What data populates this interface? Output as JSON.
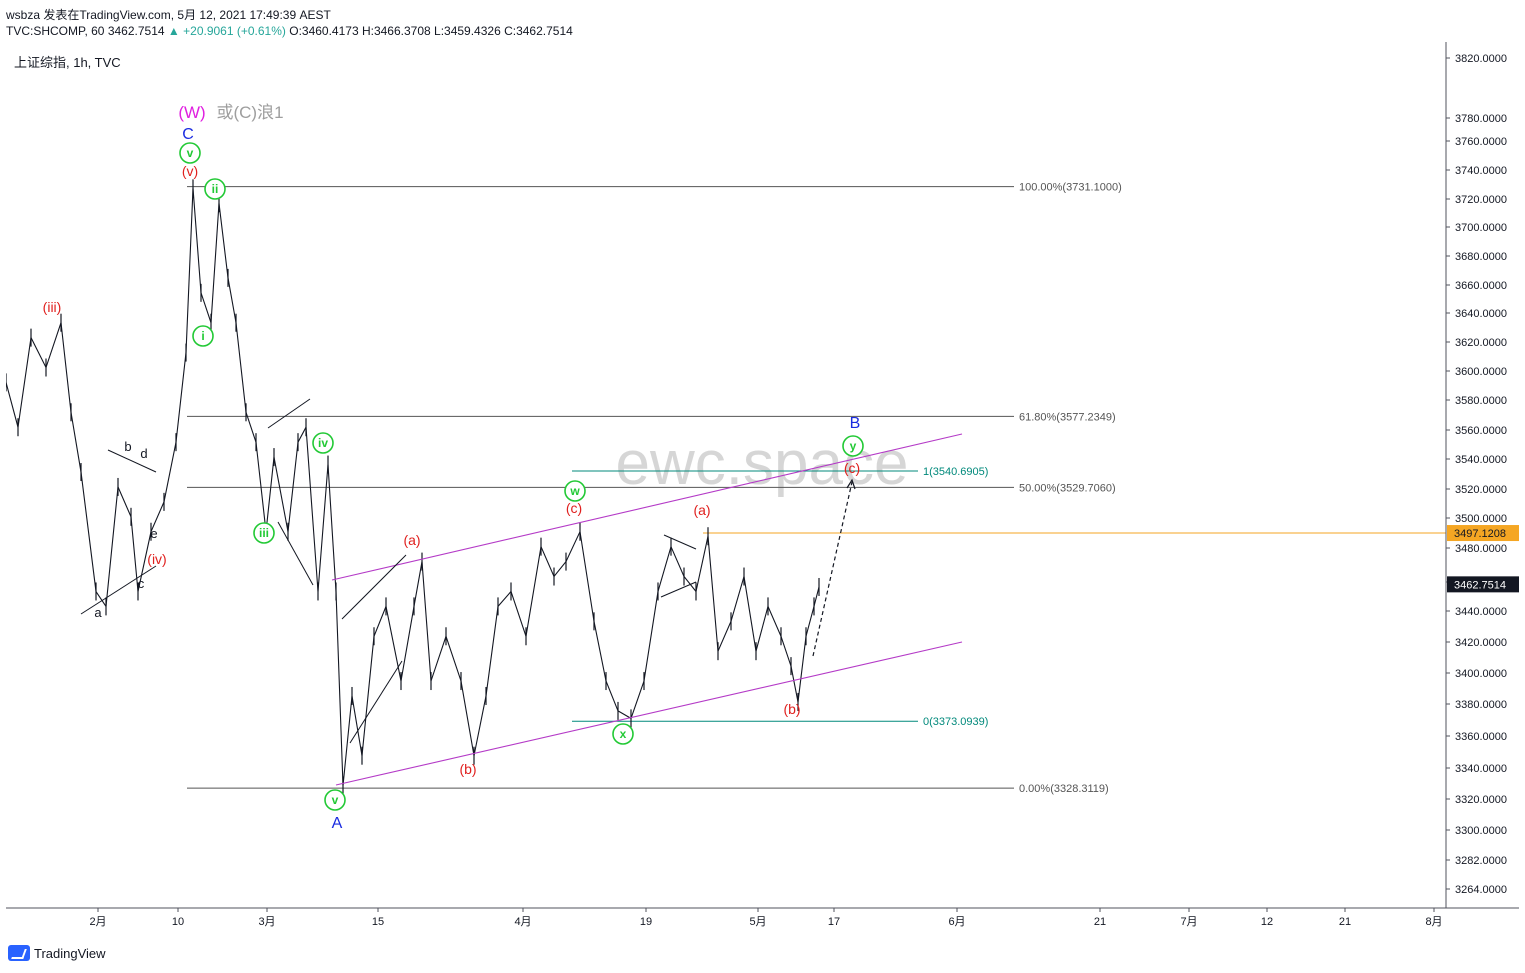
{
  "header": {
    "line1": "wsbza 发表在TradingView.com, 5月 12, 2021 17:49:39 AEST",
    "symbol": "TVC:SHCOMP, 60",
    "last": "3462.7514",
    "change": "+20.9061 (+0.61%)",
    "ohlc": "O:3460.4173 H:3466.3708 L:3459.4326 C:3462.7514"
  },
  "legend": "上证综指, 1h, TVC",
  "watermark": "ewc.space",
  "footer_logo": "TradingView",
  "colors": {
    "wave_red": "#e0201e",
    "wave_green": "#22c935",
    "wave_blue": "#1a2be0",
    "channel": "#b43ac7",
    "teal": "#00897b",
    "fib_line": "#555555",
    "price_tag": "#131722",
    "orange_tag": "#f5a623",
    "magenta": "#e020e0"
  },
  "chart_data": {
    "type": "line",
    "x_axis": {
      "tick_labels": [
        "2月",
        "10",
        "3月",
        "15",
        "4月",
        "19",
        "5月",
        "17",
        "6月",
        "21",
        "7月",
        "12",
        "21",
        "8月"
      ]
    },
    "y_axis": {
      "ylim": [
        3248,
        3828
      ],
      "tick_labels": [
        "3820.0000",
        "3780.0000",
        "3760.0000",
        "3740.0000",
        "3720.0000",
        "3700.0000",
        "3680.0000",
        "3660.0000",
        "3640.0000",
        "3620.0000",
        "3600.0000",
        "3580.0000",
        "3560.0000",
        "3540.0000",
        "3520.0000",
        "3500.0000",
        "3480.0000",
        "3460.0000",
        "3440.0000",
        "3420.0000",
        "3400.0000",
        "3380.0000",
        "3360.0000",
        "3340.0000",
        "3320.0000",
        "3300.0000",
        "3282.0000",
        "3264.0000"
      ],
      "price_tags": [
        {
          "label": "3497.1208",
          "value": 3497.1208,
          "style": "orange"
        },
        {
          "label": "3462.7514",
          "value": 3462.7514,
          "style": "dark"
        }
      ]
    },
    "price_path": [
      [
        0,
        3600
      ],
      [
        12,
        3570
      ],
      [
        25,
        3630
      ],
      [
        40,
        3610
      ],
      [
        55,
        3640
      ],
      [
        65,
        3580
      ],
      [
        75,
        3540
      ],
      [
        90,
        3460
      ],
      [
        100,
        3450
      ],
      [
        112,
        3530
      ],
      [
        125,
        3510
      ],
      [
        132,
        3460
      ],
      [
        145,
        3500
      ],
      [
        158,
        3520
      ],
      [
        170,
        3560
      ],
      [
        180,
        3620
      ],
      [
        187,
        3730
      ],
      [
        195,
        3660
      ],
      [
        205,
        3640
      ],
      [
        213,
        3720
      ],
      [
        222,
        3670
      ],
      [
        230,
        3640
      ],
      [
        240,
        3580
      ],
      [
        250,
        3560
      ],
      [
        260,
        3500
      ],
      [
        268,
        3550
      ],
      [
        282,
        3500
      ],
      [
        292,
        3560
      ],
      [
        300,
        3570
      ],
      [
        312,
        3460
      ],
      [
        322,
        3545
      ],
      [
        330,
        3460
      ],
      [
        337,
        3330
      ],
      [
        346,
        3390
      ],
      [
        356,
        3350
      ],
      [
        368,
        3430
      ],
      [
        380,
        3450
      ],
      [
        395,
        3400
      ],
      [
        408,
        3450
      ],
      [
        416,
        3480
      ],
      [
        425,
        3400
      ],
      [
        440,
        3430
      ],
      [
        455,
        3400
      ],
      [
        468,
        3350
      ],
      [
        480,
        3390
      ],
      [
        492,
        3450
      ],
      [
        505,
        3460
      ],
      [
        520,
        3430
      ],
      [
        535,
        3490
      ],
      [
        548,
        3470
      ],
      [
        560,
        3480
      ],
      [
        574,
        3500
      ],
      [
        588,
        3440
      ],
      [
        600,
        3400
      ],
      [
        612,
        3380
      ],
      [
        625,
        3375
      ],
      [
        638,
        3400
      ],
      [
        652,
        3460
      ],
      [
        665,
        3490
      ],
      [
        678,
        3470
      ],
      [
        690,
        3460
      ],
      [
        702,
        3497
      ],
      [
        712,
        3420
      ],
      [
        725,
        3440
      ],
      [
        738,
        3470
      ],
      [
        750,
        3420
      ],
      [
        762,
        3450
      ],
      [
        775,
        3430
      ],
      [
        785,
        3410
      ],
      [
        792,
        3386
      ],
      [
        800,
        3430
      ],
      [
        808,
        3450
      ],
      [
        813,
        3463
      ]
    ],
    "fib_levels": [
      {
        "label": "100.00%(3731.1000)",
        "value": 3731.1
      },
      {
        "label": "61.80%(3577.2349)",
        "value": 3577.2349
      },
      {
        "label": "50.00%(3529.7060)",
        "value": 3529.706
      },
      {
        "label": "0.00%(3328.3119)",
        "value": 3328.3119
      }
    ],
    "teal_levels": [
      {
        "label": "1(3540.6905)",
        "value": 3540.6905
      },
      {
        "label": "0(3373.0939)",
        "value": 3373.0939
      }
    ],
    "wave_labels": {
      "w_title": "(W)",
      "c_note": "或(C)浪1",
      "big_c": "C",
      "big_a": "A",
      "big_b": "B",
      "minor": [
        "(iii)",
        "(iv)",
        "(v)",
        "(a)",
        "(b)",
        "(c)",
        "(a)",
        "(b)",
        "(c)"
      ],
      "circled": [
        "v",
        "ii",
        "i",
        "iii",
        "iv",
        "v",
        "w",
        "x",
        "y"
      ],
      "small": [
        "a",
        "b",
        "c",
        "d",
        "e"
      ]
    }
  }
}
